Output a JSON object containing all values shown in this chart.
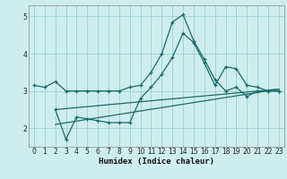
{
  "xlabel": "Humidex (Indice chaleur)",
  "bg_color": "#ceeeed",
  "line_color": "#1a6b6b",
  "grid_color": "#9dcece",
  "xlim": [
    -0.5,
    23.5
  ],
  "ylim": [
    1.5,
    5.3
  ],
  "yticks": [
    2,
    3,
    4,
    5
  ],
  "xticks": [
    0,
    1,
    2,
    3,
    4,
    5,
    6,
    7,
    8,
    9,
    10,
    11,
    12,
    13,
    14,
    15,
    16,
    17,
    18,
    19,
    20,
    21,
    22,
    23
  ],
  "line1_x": [
    0,
    1,
    2,
    3,
    4,
    5,
    6,
    7,
    8,
    9,
    10,
    11,
    12,
    13,
    14,
    15,
    16,
    17,
    18,
    19,
    20,
    21,
    22,
    23
  ],
  "line1_y": [
    3.15,
    3.1,
    3.25,
    3.0,
    3.0,
    3.0,
    3.0,
    3.0,
    3.0,
    3.1,
    3.15,
    3.5,
    4.0,
    4.85,
    5.05,
    4.35,
    3.85,
    3.3,
    3.0,
    3.1,
    2.85,
    3.0,
    3.0,
    3.0
  ],
  "line2_x": [
    2,
    3,
    4,
    5,
    6,
    7,
    8,
    9,
    10,
    11,
    12,
    13,
    14,
    15,
    16,
    17,
    18,
    19,
    20,
    21,
    22,
    23
  ],
  "line2_y": [
    2.5,
    1.7,
    2.3,
    2.25,
    2.2,
    2.15,
    2.15,
    2.15,
    2.8,
    3.1,
    3.45,
    3.9,
    4.55,
    4.3,
    3.75,
    3.15,
    3.65,
    3.6,
    3.15,
    3.1,
    3.0,
    3.0
  ],
  "line3_x": [
    2,
    23
  ],
  "line3_y": [
    2.1,
    3.05
  ],
  "line4_x": [
    2,
    23
  ],
  "line4_y": [
    2.5,
    3.05
  ]
}
